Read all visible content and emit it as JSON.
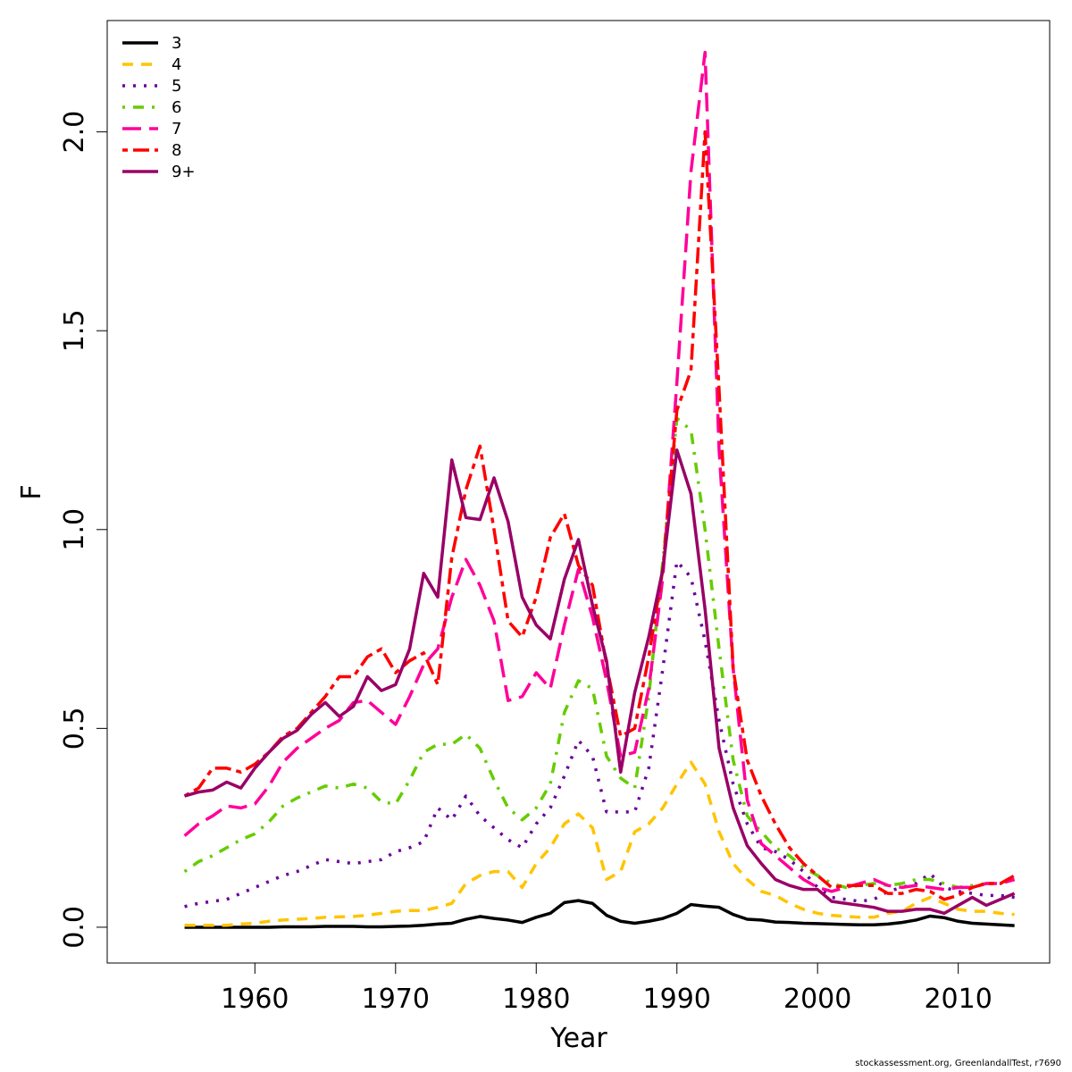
{
  "chart_data": {
    "type": "line",
    "title": "",
    "xlabel": "Year",
    "ylabel": "F",
    "xlim": [
      1949.5,
      2016.5
    ],
    "ylim": [
      -0.09,
      2.28
    ],
    "x_ticks": [
      1960,
      1970,
      1980,
      1990,
      2000,
      2010
    ],
    "x_tick_labels": [
      "1960",
      "1970",
      "1980",
      "1990",
      "2000",
      "2010"
    ],
    "y_ticks": [
      0.0,
      0.5,
      1.0,
      1.5,
      2.0
    ],
    "y_tick_labels": [
      "0.0",
      "0.5",
      "1.0",
      "1.5",
      "2.0"
    ],
    "legend_position": "top-left",
    "x": [
      1955,
      1956,
      1957,
      1958,
      1959,
      1960,
      1961,
      1962,
      1963,
      1964,
      1965,
      1966,
      1967,
      1968,
      1969,
      1970,
      1971,
      1972,
      1973,
      1974,
      1975,
      1976,
      1977,
      1978,
      1979,
      1980,
      1981,
      1982,
      1983,
      1984,
      1985,
      1986,
      1987,
      1988,
      1989,
      1990,
      1991,
      1992,
      1993,
      1994,
      1995,
      1996,
      1997,
      1998,
      1999,
      2000,
      2001,
      2002,
      2003,
      2004,
      2005,
      2006,
      2007,
      2008,
      2009,
      2010,
      2011,
      2012,
      2013,
      2014
    ],
    "series": [
      {
        "name": "3",
        "color": "#000000",
        "dash": "solid",
        "values": [
          0.0,
          0.0,
          0.0,
          0.0,
          0.0,
          0.0,
          0.0,
          0.001,
          0.001,
          0.001,
          0.002,
          0.002,
          0.002,
          0.001,
          0.001,
          0.002,
          0.003,
          0.005,
          0.008,
          0.01,
          0.02,
          0.027,
          0.022,
          0.018,
          0.012,
          0.025,
          0.035,
          0.062,
          0.067,
          0.06,
          0.03,
          0.015,
          0.01,
          0.015,
          0.022,
          0.035,
          0.057,
          0.053,
          0.05,
          0.032,
          0.02,
          0.018,
          0.013,
          0.012,
          0.01,
          0.009,
          0.008,
          0.007,
          0.006,
          0.006,
          0.008,
          0.012,
          0.018,
          0.028,
          0.024,
          0.015,
          0.01,
          0.008,
          0.006,
          0.004
        ]
      },
      {
        "name": "4",
        "color": "#FFC400",
        "dash": "dashed",
        "values": [
          0.005,
          0.005,
          0.005,
          0.005,
          0.008,
          0.01,
          0.015,
          0.018,
          0.02,
          0.022,
          0.025,
          0.026,
          0.027,
          0.03,
          0.035,
          0.04,
          0.042,
          0.042,
          0.05,
          0.06,
          0.11,
          0.13,
          0.14,
          0.14,
          0.1,
          0.16,
          0.2,
          0.26,
          0.285,
          0.25,
          0.12,
          0.14,
          0.24,
          0.26,
          0.3,
          0.36,
          0.415,
          0.36,
          0.24,
          0.16,
          0.12,
          0.09,
          0.08,
          0.06,
          0.045,
          0.035,
          0.03,
          0.027,
          0.025,
          0.025,
          0.035,
          0.04,
          0.06,
          0.075,
          0.06,
          0.045,
          0.04,
          0.04,
          0.035,
          0.032
        ]
      },
      {
        "name": "5",
        "color": "#6A009B",
        "dash": "dotted",
        "values": [
          0.052,
          0.06,
          0.065,
          0.07,
          0.085,
          0.1,
          0.115,
          0.13,
          0.14,
          0.155,
          0.17,
          0.165,
          0.16,
          0.165,
          0.17,
          0.19,
          0.2,
          0.215,
          0.3,
          0.27,
          0.33,
          0.28,
          0.25,
          0.22,
          0.2,
          0.26,
          0.3,
          0.38,
          0.47,
          0.43,
          0.29,
          0.29,
          0.29,
          0.4,
          0.65,
          0.92,
          0.88,
          0.72,
          0.52,
          0.36,
          0.26,
          0.2,
          0.19,
          0.17,
          0.14,
          0.1,
          0.075,
          0.07,
          0.065,
          0.07,
          0.09,
          0.1,
          0.11,
          0.135,
          0.1,
          0.09,
          0.085,
          0.08,
          0.08,
          0.075
        ]
      },
      {
        "name": "6",
        "color": "#66CC00",
        "dash": "dotdash",
        "values": [
          0.14,
          0.165,
          0.18,
          0.2,
          0.22,
          0.235,
          0.265,
          0.305,
          0.325,
          0.34,
          0.355,
          0.35,
          0.36,
          0.35,
          0.315,
          0.31,
          0.37,
          0.44,
          0.46,
          0.46,
          0.485,
          0.45,
          0.37,
          0.3,
          0.27,
          0.3,
          0.36,
          0.54,
          0.62,
          0.6,
          0.43,
          0.375,
          0.35,
          0.58,
          0.92,
          1.28,
          1.25,
          1.0,
          0.7,
          0.42,
          0.28,
          0.24,
          0.2,
          0.18,
          0.15,
          0.13,
          0.11,
          0.1,
          0.105,
          0.11,
          0.105,
          0.11,
          0.12,
          0.12,
          0.11,
          0.1,
          0.105,
          0.11,
          0.11,
          0.12
        ]
      },
      {
        "name": "7",
        "color": "#FF0099",
        "dash": "longdash",
        "values": [
          0.23,
          0.26,
          0.28,
          0.305,
          0.3,
          0.31,
          0.355,
          0.415,
          0.45,
          0.475,
          0.5,
          0.52,
          0.565,
          0.57,
          0.54,
          0.51,
          0.58,
          0.66,
          0.7,
          0.83,
          0.925,
          0.86,
          0.77,
          0.57,
          0.58,
          0.64,
          0.6,
          0.76,
          0.9,
          0.78,
          0.62,
          0.43,
          0.44,
          0.6,
          0.88,
          1.37,
          1.9,
          2.2,
          1.2,
          0.65,
          0.32,
          0.21,
          0.18,
          0.15,
          0.12,
          0.1,
          0.09,
          0.1,
          0.11,
          0.12,
          0.105,
          0.1,
          0.105,
          0.1,
          0.095,
          0.1,
          0.1,
          0.11,
          0.11,
          0.12
        ]
      },
      {
        "name": "8",
        "color": "#FF0000",
        "dash": "twodash",
        "values": [
          0.33,
          0.35,
          0.4,
          0.4,
          0.39,
          0.41,
          0.44,
          0.48,
          0.5,
          0.54,
          0.58,
          0.63,
          0.63,
          0.68,
          0.7,
          0.64,
          0.67,
          0.69,
          0.61,
          0.93,
          1.1,
          1.21,
          1.0,
          0.77,
          0.73,
          0.83,
          0.98,
          1.04,
          0.91,
          0.86,
          0.66,
          0.48,
          0.5,
          0.68,
          0.9,
          1.3,
          1.4,
          2.0,
          1.35,
          0.65,
          0.42,
          0.33,
          0.26,
          0.2,
          0.16,
          0.13,
          0.1,
          0.105,
          0.105,
          0.105,
          0.085,
          0.085,
          0.095,
          0.09,
          0.07,
          0.08,
          0.1,
          0.11,
          0.11,
          0.13
        ]
      },
      {
        "name": "9+",
        "color": "#990066",
        "dash": "solid",
        "values": [
          0.33,
          0.34,
          0.345,
          0.365,
          0.35,
          0.4,
          0.44,
          0.475,
          0.495,
          0.535,
          0.565,
          0.53,
          0.555,
          0.63,
          0.595,
          0.61,
          0.7,
          0.89,
          0.83,
          1.175,
          1.03,
          1.025,
          1.13,
          1.02,
          0.83,
          0.76,
          0.725,
          0.875,
          0.975,
          0.81,
          0.67,
          0.39,
          0.59,
          0.73,
          0.9,
          1.2,
          1.09,
          0.8,
          0.45,
          0.3,
          0.205,
          0.16,
          0.12,
          0.105,
          0.095,
          0.095,
          0.065,
          0.06,
          0.055,
          0.05,
          0.04,
          0.04,
          0.045,
          0.045,
          0.035,
          0.055,
          0.075,
          0.055,
          0.07,
          0.085
        ]
      }
    ]
  },
  "footer": {
    "credit": "stockassessment.org, GreenlandallTest, r7690"
  }
}
